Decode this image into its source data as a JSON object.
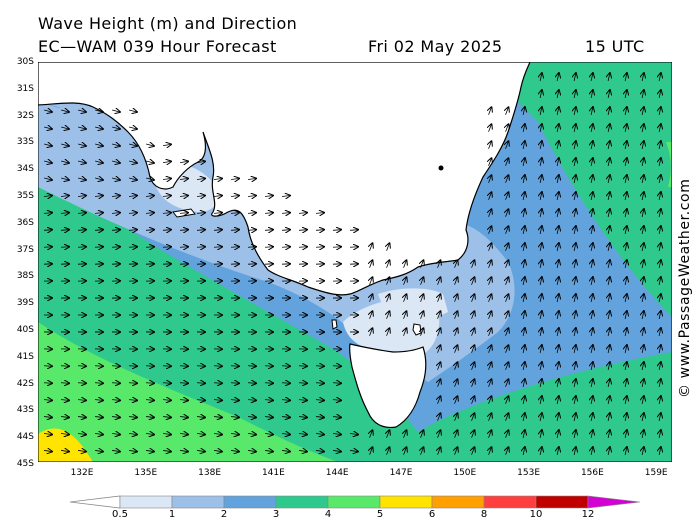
{
  "header": {
    "title": "Wave Height (m) and Direction",
    "model_line": "EC—WAM 039 Hour Forecast",
    "date": "Fri 02 May 2025",
    "time": "15 UTC"
  },
  "watermark": "© www.PassageWeather.com",
  "map": {
    "lat_labels": [
      "30S",
      "31S",
      "32S",
      "33S",
      "34S",
      "35S",
      "36S",
      "37S",
      "38S",
      "39S",
      "40S",
      "41S",
      "42S",
      "43S",
      "44S",
      "45S"
    ],
    "lon_labels": [
      "132E",
      "135E",
      "138E",
      "141E",
      "144E",
      "147E",
      "150E",
      "153E",
      "156E",
      "159E"
    ],
    "colors": {
      "ocean_deep": "#2fc98d",
      "band_3": "#62a3dd",
      "band_2": "#9dc0e8",
      "band_1": "#dce7f6",
      "band_4": "#58e86a",
      "band_5": "#ffe400",
      "land": "#ffffff"
    }
  },
  "legend": {
    "labels": [
      "0.5",
      "1",
      "2",
      "3",
      "4",
      "5",
      "6",
      "8",
      "10",
      "12"
    ],
    "colors": [
      "#dce7f6",
      "#9dc0e8",
      "#62a3dd",
      "#2fc98d",
      "#58e86a",
      "#ffe400",
      "#ffa000",
      "#ff3f3f",
      "#c00000",
      "#d400d4"
    ]
  }
}
